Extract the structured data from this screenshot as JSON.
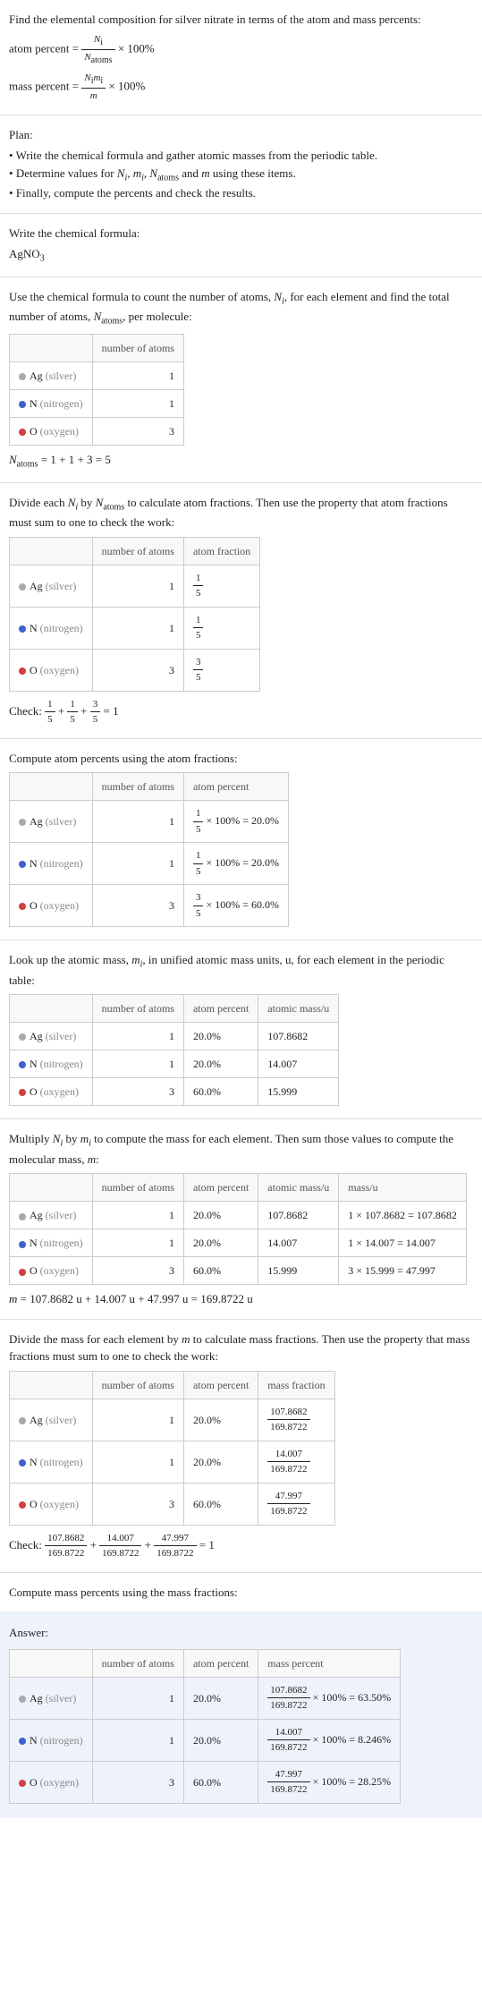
{
  "intro": {
    "line1": "Find the elemental composition for silver nitrate in terms of the atom and mass percents:",
    "atom_percent_label": "atom percent = ",
    "atom_frac_num": "N",
    "atom_frac_num_sub": "i",
    "atom_frac_den": "N",
    "atom_frac_den_sub": "atoms",
    "times100": " × 100%",
    "mass_percent_label": "mass percent = ",
    "mass_frac_num": "N_i m_i",
    "mass_frac_den": "m"
  },
  "plan": {
    "title": "Plan:",
    "items": [
      "Write the chemical formula and gather atomic masses from the periodic table.",
      "Determine values for N_i, m_i, N_atoms and m using these items.",
      "Finally, compute the percents and check the results."
    ]
  },
  "formula_section": {
    "title": "Write the chemical formula:",
    "formula": "AgNO",
    "formula_sub": "3"
  },
  "count_section": {
    "intro": "Use the chemical formula to count the number of atoms, N_i, for each element and find the total number of atoms, N_atoms, per molecule:",
    "headers": [
      "",
      "number of atoms"
    ],
    "rows": [
      {
        "el": "Ag",
        "name": "(silver)",
        "n": "1"
      },
      {
        "el": "N",
        "name": "(nitrogen)",
        "n": "1"
      },
      {
        "el": "O",
        "name": "(oxygen)",
        "n": "3"
      }
    ],
    "total": "N_atoms = 1 + 1 + 3 = 5"
  },
  "atom_frac_section": {
    "intro": "Divide each N_i by N_atoms to calculate atom fractions. Then use the property that atom fractions must sum to one to check the work:",
    "headers": [
      "",
      "number of atoms",
      "atom fraction"
    ],
    "rows": [
      {
        "el": "Ag",
        "name": "(silver)",
        "n": "1",
        "frac_num": "1",
        "frac_den": "5"
      },
      {
        "el": "N",
        "name": "(nitrogen)",
        "n": "1",
        "frac_num": "1",
        "frac_den": "5"
      },
      {
        "el": "O",
        "name": "(oxygen)",
        "n": "3",
        "frac_num": "3",
        "frac_den": "5"
      }
    ],
    "check": "Check: ",
    "check_eq": " = 1"
  },
  "atom_pct_section": {
    "intro": "Compute atom percents using the atom fractions:",
    "headers": [
      "",
      "number of atoms",
      "atom percent"
    ],
    "rows": [
      {
        "el": "Ag",
        "name": "(silver)",
        "n": "1",
        "frac_num": "1",
        "frac_den": "5",
        "result": " × 100% = 20.0%"
      },
      {
        "el": "N",
        "name": "(nitrogen)",
        "n": "1",
        "frac_num": "1",
        "frac_den": "5",
        "result": " × 100% = 20.0%"
      },
      {
        "el": "O",
        "name": "(oxygen)",
        "n": "3",
        "frac_num": "3",
        "frac_den": "5",
        "result": " × 100% = 60.0%"
      }
    ]
  },
  "mass_lookup_section": {
    "intro": "Look up the atomic mass, m_i, in unified atomic mass units, u, for each element in the periodic table:",
    "headers": [
      "",
      "number of atoms",
      "atom percent",
      "atomic mass/u"
    ],
    "rows": [
      {
        "el": "Ag",
        "name": "(silver)",
        "n": "1",
        "pct": "20.0%",
        "mass": "107.8682"
      },
      {
        "el": "N",
        "name": "(nitrogen)",
        "n": "1",
        "pct": "20.0%",
        "mass": "14.007"
      },
      {
        "el": "O",
        "name": "(oxygen)",
        "n": "3",
        "pct": "60.0%",
        "mass": "15.999"
      }
    ]
  },
  "mass_calc_section": {
    "intro": "Multiply N_i by m_i to compute the mass for each element. Then sum those values to compute the molecular mass, m:",
    "headers": [
      "",
      "number of atoms",
      "atom percent",
      "atomic mass/u",
      "mass/u"
    ],
    "rows": [
      {
        "el": "Ag",
        "name": "(silver)",
        "n": "1",
        "pct": "20.0%",
        "mass": "107.8682",
        "calc": "1 × 107.8682 = 107.8682"
      },
      {
        "el": "N",
        "name": "(nitrogen)",
        "n": "1",
        "pct": "20.0%",
        "mass": "14.007",
        "calc": "1 × 14.007 = 14.007"
      },
      {
        "el": "O",
        "name": "(oxygen)",
        "n": "3",
        "pct": "60.0%",
        "mass": "15.999",
        "calc": "3 × 15.999 = 47.997"
      }
    ],
    "total": "m = 107.8682 u + 14.007 u + 47.997 u = 169.8722 u"
  },
  "mass_frac_section": {
    "intro": "Divide the mass for each element by m to calculate mass fractions. Then use the property that mass fractions must sum to one to check the work:",
    "headers": [
      "",
      "number of atoms",
      "atom percent",
      "mass fraction"
    ],
    "rows": [
      {
        "el": "Ag",
        "name": "(silver)",
        "n": "1",
        "pct": "20.0%",
        "frac_num": "107.8682",
        "frac_den": "169.8722"
      },
      {
        "el": "N",
        "name": "(nitrogen)",
        "n": "1",
        "pct": "20.0%",
        "frac_num": "14.007",
        "frac_den": "169.8722"
      },
      {
        "el": "O",
        "name": "(oxygen)",
        "n": "3",
        "pct": "60.0%",
        "frac_num": "47.997",
        "frac_den": "169.8722"
      }
    ],
    "check": "Check: ",
    "check_eq": " = 1",
    "plus": " + "
  },
  "mass_pct_section": {
    "intro": "Compute mass percents using the mass fractions:"
  },
  "answer": {
    "title": "Answer:",
    "headers": [
      "",
      "number of atoms",
      "atom percent",
      "mass percent"
    ],
    "rows": [
      {
        "el": "Ag",
        "name": "(silver)",
        "n": "1",
        "pct": "20.0%",
        "frac_num": "107.8682",
        "frac_den": "169.8722",
        "result": " × 100% = 63.50%"
      },
      {
        "el": "N",
        "name": "(nitrogen)",
        "n": "1",
        "pct": "20.0%",
        "frac_num": "14.007",
        "frac_den": "169.8722",
        "result": " × 100% = 8.246%"
      },
      {
        "el": "O",
        "name": "(oxygen)",
        "n": "3",
        "pct": "60.0%",
        "frac_num": "47.997",
        "frac_den": "169.8722",
        "result": " × 100% = 28.25%"
      }
    ]
  },
  "dot_classes": {
    "Ag": "ag-dot",
    "N": "n-dot",
    "O": "o-dot"
  }
}
